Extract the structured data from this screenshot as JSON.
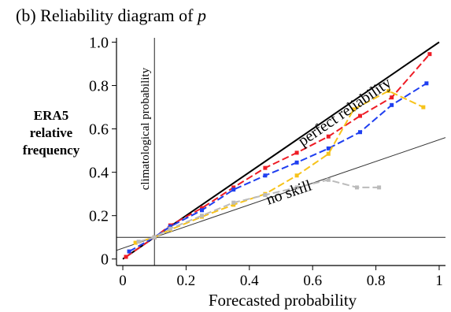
{
  "chart_data": {
    "type": "line",
    "title_prefix": "(b) Reliability diagram of ",
    "title_var": "p",
    "xlabel": "Forecasted probability",
    "ylabel_lines": [
      "ERA5",
      "relative",
      "frequency"
    ],
    "xlim": [
      -0.02,
      1.02
    ],
    "ylim": [
      -0.03,
      1.02
    ],
    "x_ticks": [
      0,
      0.2,
      0.4,
      0.6,
      0.8,
      1
    ],
    "x_tick_labels": [
      "0",
      "0.2",
      "0.4",
      "0.6",
      "0.8",
      "1"
    ],
    "y_ticks": [
      0,
      0.2,
      0.4,
      0.6,
      0.8,
      1.0
    ],
    "y_tick_labels": [
      "0",
      "0.2",
      "0.4",
      "0.6",
      "0.8",
      "1.0"
    ],
    "climatological_probability": 0.1,
    "annotations": {
      "perfect": "perfect reliability",
      "noskill": "no skill",
      "clim": "climatological probability"
    },
    "grid": false,
    "series": [
      {
        "color": "#ee1c25",
        "x": [
          0.01,
          0.1,
          0.15,
          0.25,
          0.35,
          0.45,
          0.55,
          0.65,
          0.75,
          0.85,
          0.97
        ],
        "y": [
          0.01,
          0.1,
          0.155,
          0.235,
          0.33,
          0.42,
          0.49,
          0.565,
          0.66,
          0.745,
          0.945
        ]
      },
      {
        "color": "#1f3ff0",
        "x": [
          0.02,
          0.1,
          0.15,
          0.25,
          0.35,
          0.45,
          0.55,
          0.65,
          0.75,
          0.85,
          0.96
        ],
        "y": [
          0.035,
          0.1,
          0.15,
          0.225,
          0.32,
          0.385,
          0.445,
          0.51,
          0.585,
          0.71,
          0.81
        ]
      },
      {
        "color": "#f7c31a",
        "x": [
          0.04,
          0.1,
          0.15,
          0.25,
          0.35,
          0.45,
          0.55,
          0.65,
          0.73,
          0.84,
          0.95
        ],
        "y": [
          0.075,
          0.1,
          0.135,
          0.195,
          0.25,
          0.3,
          0.385,
          0.485,
          0.69,
          0.775,
          0.7
        ]
      },
      {
        "color": "#bbbbbb",
        "x": [
          0.05,
          0.1,
          0.15,
          0.25,
          0.35,
          0.45,
          0.55,
          0.65,
          0.74,
          0.81
        ],
        "y": [
          0.08,
          0.1,
          0.14,
          0.2,
          0.26,
          0.295,
          0.33,
          0.365,
          0.33,
          0.33
        ]
      }
    ]
  }
}
